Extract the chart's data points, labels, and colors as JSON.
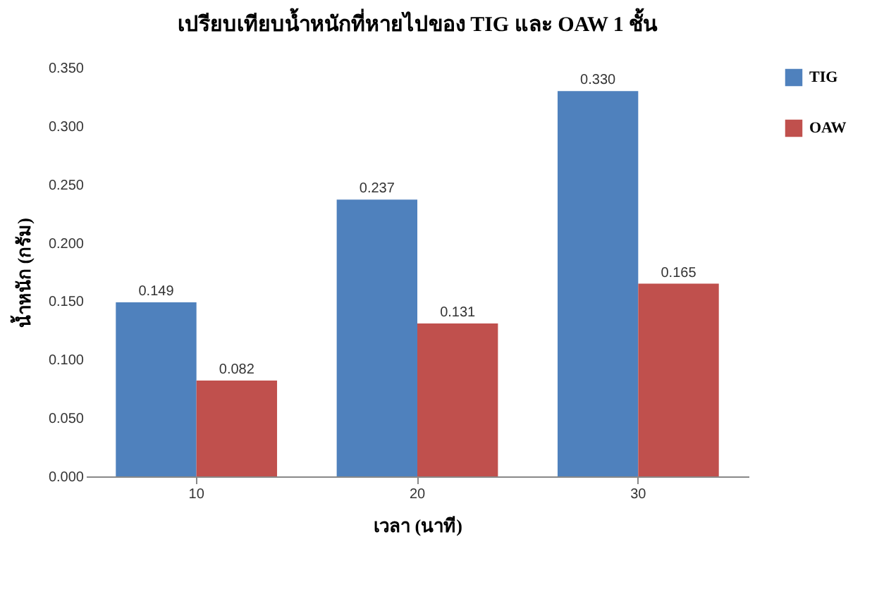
{
  "chart_data": {
    "type": "bar",
    "title": "เปรียบเทียบน้ำหนักที่หายไปของ TIG และ OAW 1 ชั้น",
    "xlabel": "เวลา (นาที)",
    "ylabel": "น้ำหนัก (กรัม)",
    "categories": [
      "10",
      "20",
      "30"
    ],
    "series": [
      {
        "name": "TIG",
        "color": "#4f81bd",
        "values": [
          0.149,
          0.237,
          0.33
        ],
        "value_labels": [
          "0.149",
          "0.237",
          "0.330"
        ]
      },
      {
        "name": "OAW",
        "color": "#c0504d",
        "values": [
          0.082,
          0.131,
          0.165
        ],
        "value_labels": [
          "0.082",
          "0.131",
          "0.165"
        ]
      }
    ],
    "ylim": [
      0,
      0.35
    ],
    "yticks": [
      {
        "value": 0,
        "label": "0.000"
      },
      {
        "value": 0.05,
        "label": "0.050"
      },
      {
        "value": 0.1,
        "label": "0.100"
      },
      {
        "value": 0.15,
        "label": "0.150"
      },
      {
        "value": 0.2,
        "label": "0.200"
      },
      {
        "value": 0.25,
        "label": "0.250"
      },
      {
        "value": 0.3,
        "label": "0.300"
      },
      {
        "value": 0.35,
        "label": "0.350"
      }
    ],
    "grid": false,
    "legend": "right"
  }
}
